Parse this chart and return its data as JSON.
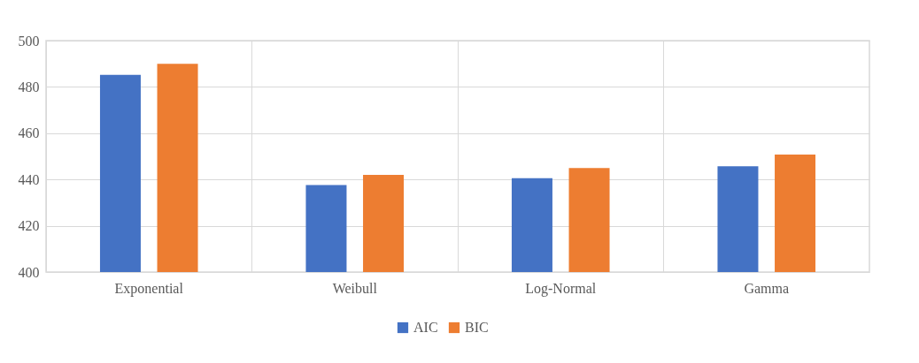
{
  "chart_data": {
    "type": "bar",
    "categories": [
      "Exponential",
      "Weibull",
      "Log-Normal",
      "Gamma"
    ],
    "series": [
      {
        "name": "AIC",
        "color": "#4472c4",
        "values": [
          485.2,
          437.6,
          440.6,
          445.7
        ]
      },
      {
        "name": "BIC",
        "color": "#ed7d31",
        "values": [
          490.0,
          442.0,
          444.9,
          450.8
        ]
      }
    ],
    "ylim": [
      400,
      500
    ],
    "yticks": [
      400,
      420,
      440,
      460,
      480,
      500
    ],
    "grid": true,
    "legend": "bottom"
  }
}
